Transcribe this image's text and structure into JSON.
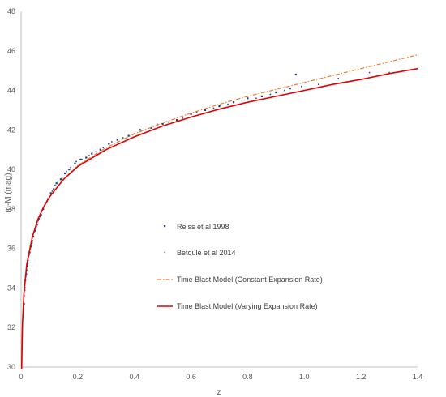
{
  "colors": {
    "riess": "#1f3a73",
    "betoule": "#2f4b8f",
    "constant": "#ed7d31",
    "varying": "#e00000",
    "axis": "#bfbfbf",
    "text": "#595959"
  },
  "chart_data": {
    "type": "scatter",
    "title": "",
    "xlabel": "z",
    "ylabel": "m-M (mag)",
    "xlim": [
      0,
      1.4
    ],
    "ylim": [
      30,
      48
    ],
    "xticks": [
      "0",
      "0.2",
      "0.4",
      "0.6",
      "0.8",
      "1.0",
      "1.2",
      "1.4"
    ],
    "yticks": [
      "30",
      "32",
      "34",
      "36",
      "38",
      "40",
      "42",
      "44",
      "46",
      "48"
    ],
    "grid": false,
    "legend_position": "center",
    "legend": [
      "Reiss et al 1998",
      "Betoule et al 2014",
      "Time Blast Model (Constant Expansion Rate)",
      "Time Blast Model (Varying Expansion Rate)"
    ],
    "series": [
      {
        "name": "Reiss et al 1998",
        "kind": "scatter",
        "points": [
          [
            0.01,
            33.2
          ],
          [
            0.012,
            33.9
          ],
          [
            0.015,
            34.4
          ],
          [
            0.018,
            34.7
          ],
          [
            0.02,
            35.1
          ],
          [
            0.023,
            35.2
          ],
          [
            0.026,
            35.6
          ],
          [
            0.03,
            35.8
          ],
          [
            0.034,
            36.1
          ],
          [
            0.038,
            36.3
          ],
          [
            0.043,
            36.6
          ],
          [
            0.05,
            36.9
          ],
          [
            0.056,
            37.2
          ],
          [
            0.062,
            37.5
          ],
          [
            0.07,
            37.7
          ],
          [
            0.078,
            38.0
          ],
          [
            0.086,
            38.3
          ],
          [
            0.095,
            38.5
          ],
          [
            0.105,
            38.8
          ],
          [
            0.115,
            39.0
          ],
          [
            0.125,
            39.3
          ],
          [
            0.14,
            39.5
          ],
          [
            0.155,
            39.8
          ],
          [
            0.17,
            40.0
          ],
          [
            0.19,
            40.3
          ],
          [
            0.21,
            40.5
          ],
          [
            0.23,
            40.6
          ],
          [
            0.25,
            40.8
          ],
          [
            0.28,
            41.0
          ],
          [
            0.31,
            41.3
          ],
          [
            0.34,
            41.5
          ],
          [
            0.38,
            41.7
          ],
          [
            0.42,
            42.0
          ],
          [
            0.46,
            42.1
          ],
          [
            0.5,
            42.3
          ],
          [
            0.55,
            42.5
          ],
          [
            0.6,
            42.8
          ],
          [
            0.65,
            43.0
          ],
          [
            0.7,
            43.2
          ],
          [
            0.75,
            43.4
          ],
          [
            0.8,
            43.6
          ],
          [
            0.85,
            43.7
          ],
          [
            0.9,
            43.9
          ],
          [
            0.95,
            44.1
          ],
          [
            0.97,
            44.8
          ]
        ]
      },
      {
        "name": "Betoule et al 2014",
        "kind": "scatter",
        "points": [
          [
            0.011,
            33.6
          ],
          [
            0.014,
            34.0
          ],
          [
            0.017,
            34.6
          ],
          [
            0.021,
            34.9
          ],
          [
            0.025,
            35.4
          ],
          [
            0.029,
            35.7
          ],
          [
            0.033,
            36.0
          ],
          [
            0.04,
            36.4
          ],
          [
            0.047,
            36.8
          ],
          [
            0.054,
            37.1
          ],
          [
            0.06,
            37.4
          ],
          [
            0.068,
            37.6
          ],
          [
            0.076,
            37.9
          ],
          [
            0.084,
            38.2
          ],
          [
            0.092,
            38.4
          ],
          [
            0.1,
            38.6
          ],
          [
            0.11,
            38.9
          ],
          [
            0.12,
            39.2
          ],
          [
            0.13,
            39.4
          ],
          [
            0.145,
            39.6
          ],
          [
            0.16,
            39.9
          ],
          [
            0.175,
            40.1
          ],
          [
            0.195,
            40.4
          ],
          [
            0.215,
            40.5
          ],
          [
            0.24,
            40.7
          ],
          [
            0.265,
            40.9
          ],
          [
            0.29,
            41.1
          ],
          [
            0.32,
            41.4
          ],
          [
            0.36,
            41.6
          ],
          [
            0.4,
            41.8
          ],
          [
            0.44,
            42.0
          ],
          [
            0.48,
            42.3
          ],
          [
            0.52,
            42.4
          ],
          [
            0.57,
            42.6
          ],
          [
            0.62,
            42.9
          ],
          [
            0.68,
            43.1
          ],
          [
            0.73,
            43.3
          ],
          [
            0.78,
            43.5
          ],
          [
            0.83,
            43.6
          ],
          [
            0.88,
            43.8
          ],
          [
            0.93,
            44.0
          ],
          [
            0.99,
            44.2
          ],
          [
            1.05,
            44.3
          ],
          [
            1.12,
            44.6
          ],
          [
            1.23,
            44.9
          ],
          [
            1.3,
            44.9
          ]
        ]
      },
      {
        "name": "Time Blast Model (Constant Expansion Rate)",
        "kind": "line",
        "style": "dash-dot",
        "points": [
          [
            0.002,
            29.9
          ],
          [
            0.005,
            32.2
          ],
          [
            0.01,
            33.7
          ],
          [
            0.02,
            35.2
          ],
          [
            0.04,
            36.6
          ],
          [
            0.06,
            37.5
          ],
          [
            0.08,
            38.1
          ],
          [
            0.1,
            38.6
          ],
          [
            0.15,
            39.5
          ],
          [
            0.2,
            40.2
          ],
          [
            0.3,
            41.1
          ],
          [
            0.4,
            41.8
          ],
          [
            0.5,
            42.35
          ],
          [
            0.6,
            42.85
          ],
          [
            0.7,
            43.3
          ],
          [
            0.8,
            43.7
          ],
          [
            0.9,
            44.05
          ],
          [
            1.0,
            44.4
          ],
          [
            1.1,
            44.75
          ],
          [
            1.2,
            45.1
          ],
          [
            1.3,
            45.45
          ],
          [
            1.4,
            45.8
          ]
        ]
      },
      {
        "name": "Time Blast Model (Varying Expansion Rate)",
        "kind": "line",
        "style": "solid",
        "points": [
          [
            0.002,
            29.9
          ],
          [
            0.005,
            32.2
          ],
          [
            0.01,
            33.7
          ],
          [
            0.02,
            35.2
          ],
          [
            0.04,
            36.6
          ],
          [
            0.06,
            37.5
          ],
          [
            0.08,
            38.1
          ],
          [
            0.1,
            38.6
          ],
          [
            0.15,
            39.5
          ],
          [
            0.2,
            40.15
          ],
          [
            0.3,
            41.0
          ],
          [
            0.4,
            41.65
          ],
          [
            0.5,
            42.2
          ],
          [
            0.6,
            42.65
          ],
          [
            0.7,
            43.05
          ],
          [
            0.8,
            43.4
          ],
          [
            0.9,
            43.7
          ],
          [
            1.0,
            44.0
          ],
          [
            1.1,
            44.3
          ],
          [
            1.2,
            44.55
          ],
          [
            1.3,
            44.85
          ],
          [
            1.4,
            45.1
          ]
        ]
      }
    ]
  }
}
